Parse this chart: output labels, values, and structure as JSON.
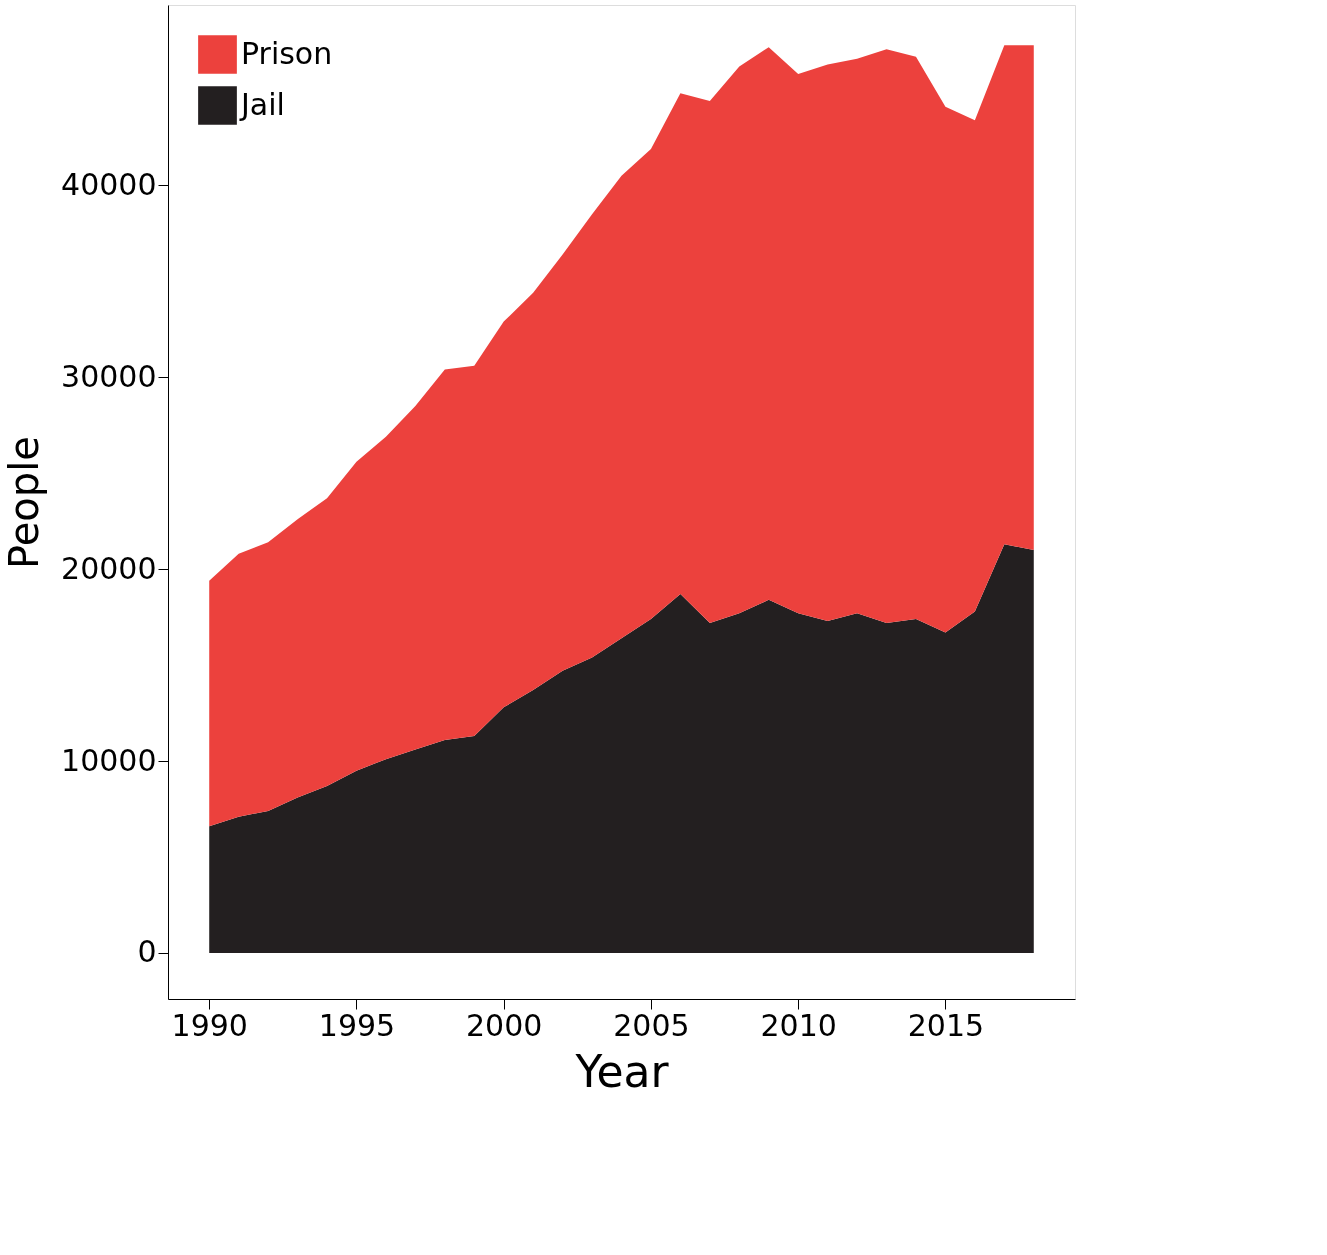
{
  "chart_data": {
    "type": "area",
    "stacked": true,
    "xlabel": "Year",
    "ylabel": "People",
    "x": [
      1990,
      1991,
      1992,
      1993,
      1994,
      1995,
      1996,
      1997,
      1998,
      1999,
      2000,
      2001,
      2002,
      2003,
      2004,
      2005,
      2006,
      2007,
      2008,
      2009,
      2010,
      2011,
      2012,
      2013,
      2014,
      2015,
      2016,
      2017,
      2018
    ],
    "series": [
      {
        "name": "Jail",
        "color": "#231f20",
        "values": [
          6600,
          7100,
          7400,
          8100,
          8700,
          9500,
          10100,
          10600,
          11100,
          11300,
          12800,
          13700,
          14700,
          15400,
          16400,
          17400,
          18700,
          17200,
          17700,
          18400,
          17700,
          17300,
          17700,
          17200,
          17400,
          16700,
          17800,
          21300,
          21000
        ]
      },
      {
        "name": "Prison",
        "color": "#ec413d",
        "values": [
          12800,
          13700,
          14000,
          14500,
          15000,
          16100,
          16800,
          17900,
          19300,
          19300,
          20100,
          20700,
          21700,
          23100,
          24100,
          24500,
          26100,
          27200,
          28500,
          28800,
          28100,
          29000,
          28900,
          29900,
          29300,
          27400,
          25600,
          26000,
          26300
        ]
      }
    ],
    "xlim": [
      1988.6,
      2019.4
    ],
    "xticks": [
      1990,
      1995,
      2000,
      2005,
      2010,
      2015
    ],
    "ylim": [
      -2400,
      49400
    ],
    "yticks": [
      0,
      10000,
      20000,
      30000,
      40000
    ],
    "grid": false,
    "legend": "top left"
  }
}
